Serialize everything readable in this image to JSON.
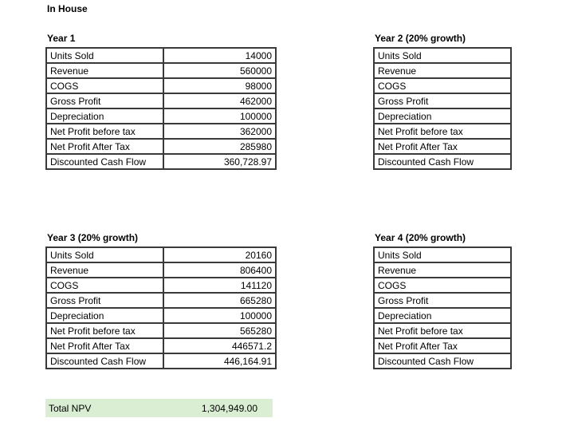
{
  "sheet_title": "In House",
  "colors": {
    "table_border": "#3a3a3a",
    "total_row_bg": "#d9eed3",
    "text": "#000000"
  },
  "tables": [
    {
      "title": "Year 1",
      "has_value_column": true,
      "rows": [
        {
          "label": "Units Sold",
          "value": "14000"
        },
        {
          "label": "Revenue",
          "value": "560000"
        },
        {
          "label": "COGS",
          "value": "98000"
        },
        {
          "label": "Gross Profit",
          "value": "462000"
        },
        {
          "label": "Depreciation",
          "value": "100000"
        },
        {
          "label": "Net Profit before tax",
          "value": "362000"
        },
        {
          "label": "Net Profit After Tax",
          "value": "285980"
        },
        {
          "label": "Discounted Cash Flow",
          "value": "360,728.97"
        }
      ]
    },
    {
      "title": "Year 2 (20% growth)",
      "has_value_column": false,
      "rows": [
        {
          "label": "Units Sold",
          "value": ""
        },
        {
          "label": "Revenue",
          "value": ""
        },
        {
          "label": "COGS",
          "value": ""
        },
        {
          "label": "Gross Profit",
          "value": ""
        },
        {
          "label": "Depreciation",
          "value": ""
        },
        {
          "label": "Net Profit before tax",
          "value": ""
        },
        {
          "label": "Net Profit After Tax",
          "value": ""
        },
        {
          "label": "Discounted Cash Flow",
          "value": ""
        }
      ]
    },
    {
      "title": "Year 3 (20% growth)",
      "has_value_column": true,
      "rows": [
        {
          "label": "Units Sold",
          "value": "20160"
        },
        {
          "label": "Revenue",
          "value": "806400"
        },
        {
          "label": "COGS",
          "value": "141120"
        },
        {
          "label": "Gross Profit",
          "value": "665280"
        },
        {
          "label": "Depreciation",
          "value": "100000"
        },
        {
          "label": "Net Profit before tax",
          "value": "565280"
        },
        {
          "label": "Net Profit After Tax",
          "value": "446571.2"
        },
        {
          "label": "Discounted Cash Flow",
          "value": "446,164.91"
        }
      ]
    },
    {
      "title": "Year 4 (20% growth)",
      "has_value_column": false,
      "rows": [
        {
          "label": "Units Sold",
          "value": ""
        },
        {
          "label": "Revenue",
          "value": ""
        },
        {
          "label": "COGS",
          "value": ""
        },
        {
          "label": "Gross Profit",
          "value": ""
        },
        {
          "label": "Depreciation",
          "value": ""
        },
        {
          "label": "Net Profit before tax",
          "value": ""
        },
        {
          "label": "Net Profit After Tax",
          "value": ""
        },
        {
          "label": "Discounted Cash Flow",
          "value": ""
        }
      ]
    }
  ],
  "total": {
    "label": "Total NPV",
    "value": "1,304,949.00"
  }
}
